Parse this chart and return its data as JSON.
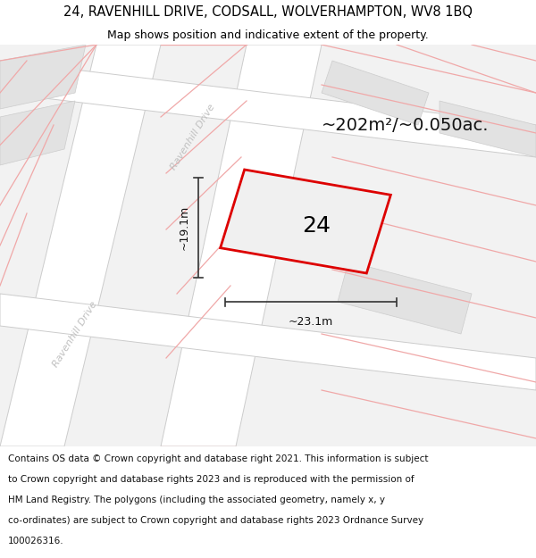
{
  "title": "24, RAVENHILL DRIVE, CODSALL, WOLVERHAMPTON, WV8 1BQ",
  "subtitle": "Map shows position and indicative extent of the property.",
  "area_label": "~202m²/~0.050ac.",
  "number_label": "24",
  "dim_h": "~19.1m",
  "dim_w": "~23.1m",
  "footer_lines": [
    "Contains OS data © Crown copyright and database right 2021. This information is subject",
    "to Crown copyright and database rights 2023 and is reproduced with the permission of",
    "HM Land Registry. The polygons (including the associated geometry, namely x, y",
    "co-ordinates) are subject to Crown copyright and database rights 2023 Ordnance Survey",
    "100026316."
  ],
  "bg_color": "#f5f5f5",
  "plot_outline_color": "#dd0000",
  "plot_fill_color": "#f0f0f0",
  "road_fill_color": "#ffffff",
  "road_edge_color": "#cccccc",
  "block_fill_color": "#e2e2e2",
  "block_edge_color": "#cccccc",
  "plot_line_color": "#f0a8a8",
  "road_label_color": "#c0c0c0",
  "dim_line_color": "#333333",
  "title_fontsize": 10.5,
  "subtitle_fontsize": 9,
  "area_fontsize": 14,
  "number_fontsize": 18,
  "dim_fontsize": 9,
  "road_label_fontsize": 8,
  "footer_fontsize": 7.5
}
